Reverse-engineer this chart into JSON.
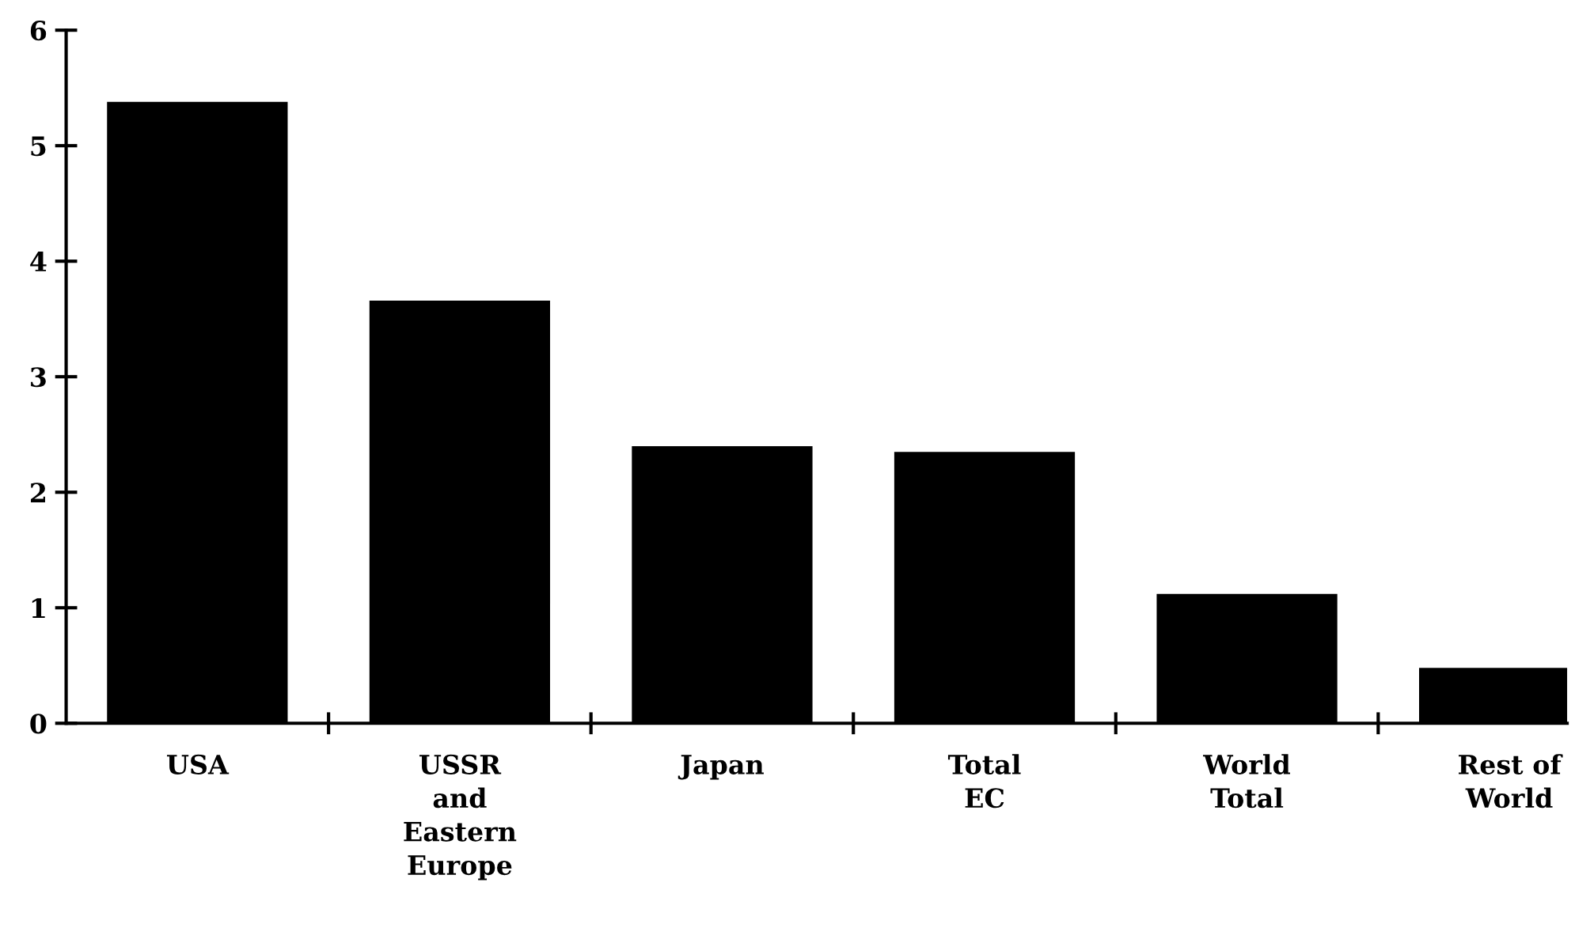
{
  "chart_data": {
    "type": "bar",
    "categories": [
      "USA",
      "USSR\nand\nEastern\nEurope",
      "Japan",
      "Total\nEC",
      "World\nTotal",
      "Rest of\nWorld"
    ],
    "values": [
      5.37,
      3.65,
      2.39,
      2.34,
      1.11,
      0.47
    ],
    "color": "#000000",
    "ylim": [
      0,
      6
    ],
    "yticks": [
      0,
      1,
      2,
      3,
      4,
      5,
      6
    ],
    "grid": false,
    "legend": false
  }
}
